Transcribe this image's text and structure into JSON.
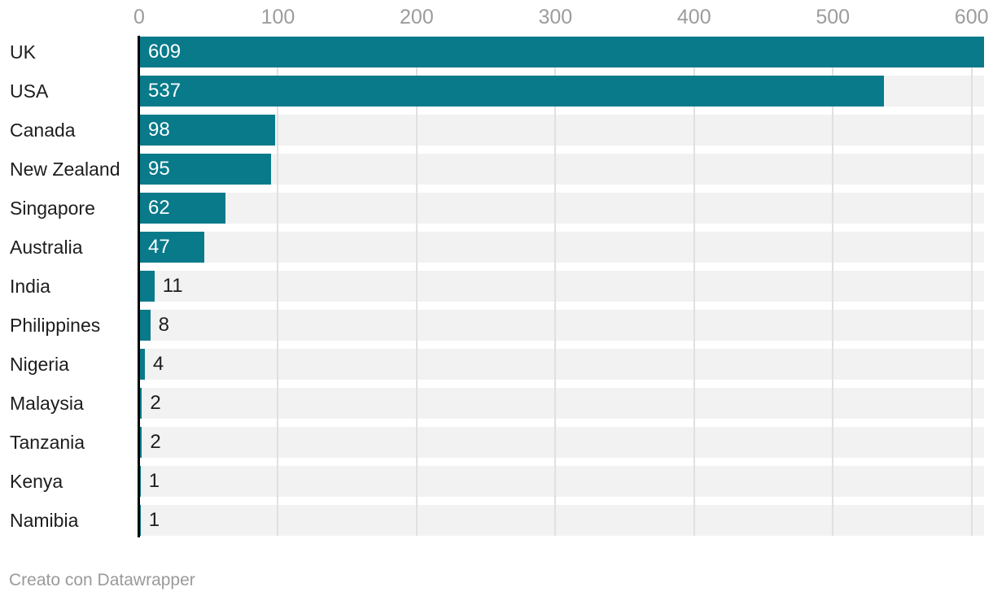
{
  "chart_data": {
    "type": "bar",
    "orientation": "horizontal",
    "categories": [
      "UK",
      "USA",
      "Canada",
      "New Zealand",
      "Singapore",
      "Australia",
      "India",
      "Philippines",
      "Nigeria",
      "Malaysia",
      "Tanzania",
      "Kenya",
      "Namibia"
    ],
    "values": [
      609,
      537,
      98,
      95,
      62,
      47,
      11,
      8,
      4,
      2,
      2,
      1,
      1
    ],
    "x_ticks": [
      0,
      100,
      200,
      300,
      400,
      500,
      600
    ],
    "xlim": [
      0,
      609
    ],
    "grid": true,
    "legend": "none",
    "title": "",
    "xlabel": "",
    "ylabel": "",
    "colors": {
      "bar": "#087a8a",
      "row_background": "#f2f2f2",
      "gridline": "#e0e0e0",
      "axis_line": "#000000",
      "tick_label": "#9c9c9c",
      "category_label": "#1d1d1d",
      "value_inside": "#ffffff",
      "value_outside": "#1d1d1d",
      "footer_text": "#9a9a9a"
    }
  },
  "footer": {
    "attribution": "Creato con Datawrapper"
  }
}
